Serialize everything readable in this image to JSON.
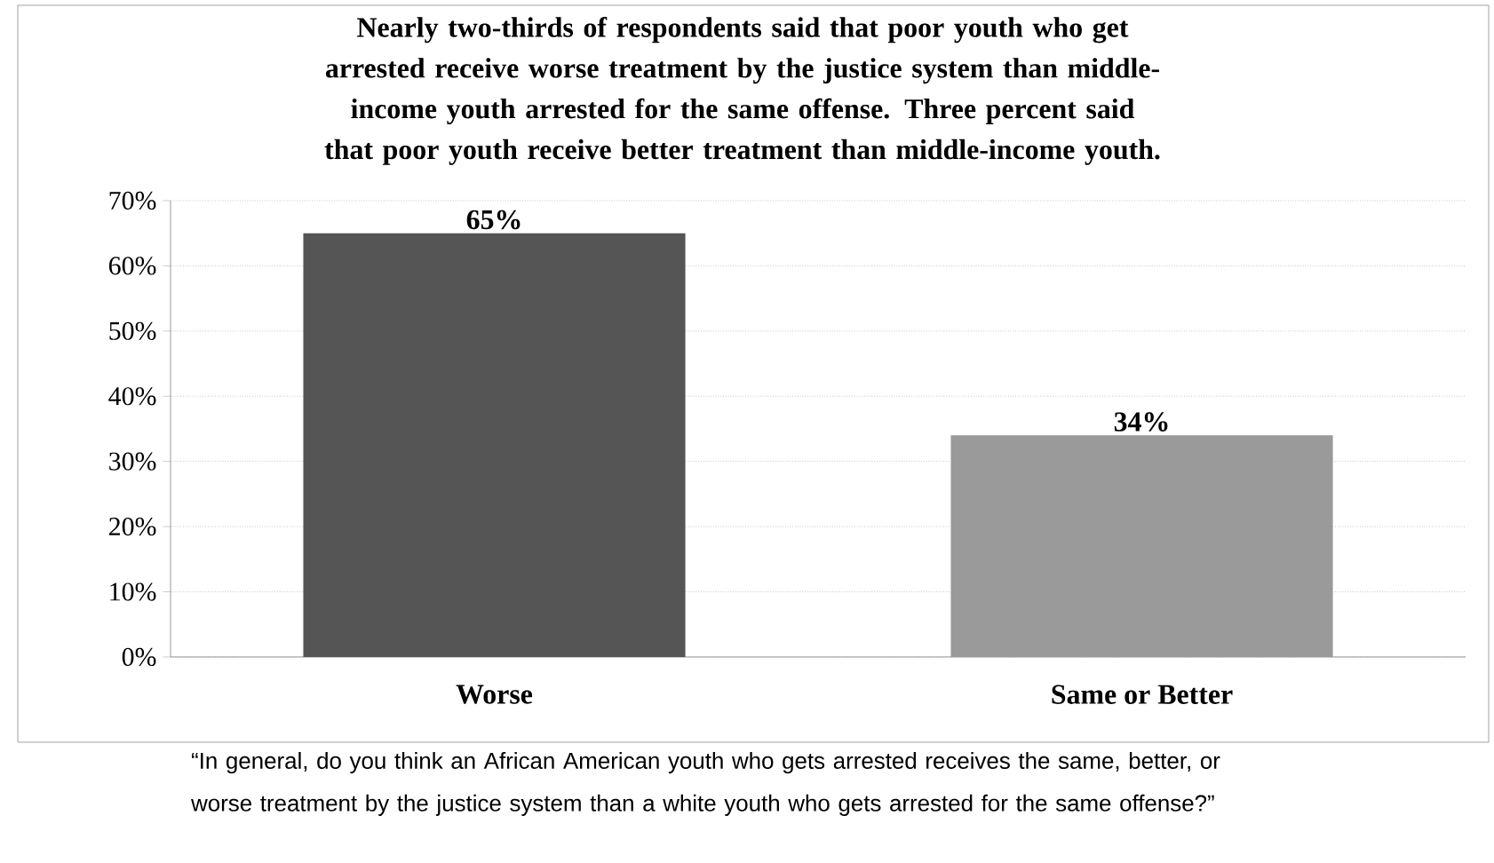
{
  "chart_data": {
    "type": "bar",
    "title": "Nearly two-thirds of respondents said that poor youth who get arrested receive worse treatment by the justice system than middle-income youth arrested for the same offense. Three percent said that poor youth receive better treatment than middle-income youth.",
    "categories": [
      "Worse",
      "Same or Better"
    ],
    "values": [
      65,
      34
    ],
    "colors": [
      "#555555",
      "#9a9a9a"
    ],
    "value_labels": [
      "65%",
      "34%"
    ],
    "ylim": [
      0,
      70
    ],
    "yticks": [
      {
        "value": 0,
        "label": "0%"
      },
      {
        "value": 10,
        "label": "10%"
      },
      {
        "value": 20,
        "label": "20%"
      },
      {
        "value": 30,
        "label": "30%"
      },
      {
        "value": 40,
        "label": "40%"
      },
      {
        "value": 50,
        "label": "50%"
      },
      {
        "value": 60,
        "label": "60%"
      },
      {
        "value": 70,
        "label": "70%"
      }
    ],
    "grid": "y",
    "annotations": [
      "“In general, do you think an African American youth who gets arrested receives the same, better, or worse treatment by the justice system than a white youth who gets arrested for the same offense?”"
    ]
  }
}
